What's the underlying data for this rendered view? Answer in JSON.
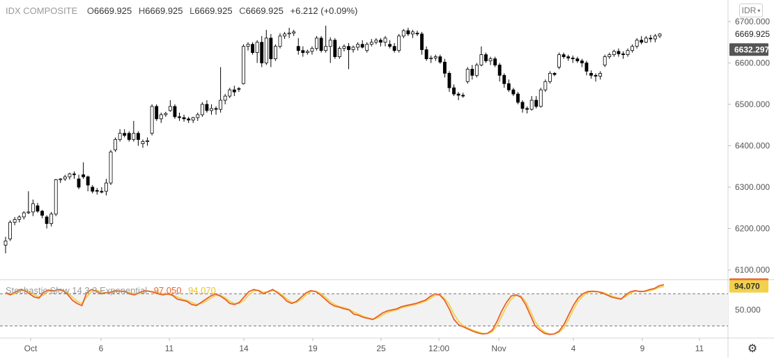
{
  "legend": {
    "symbol": "IDX COMPOSITE",
    "open_label": "O",
    "open": "6669.925",
    "high_label": "H",
    "high": "6669.925",
    "low_label": "L",
    "low": "6669.925",
    "close_label": "C",
    "close": "6669.925",
    "change": "+6.212 (+0.09%)"
  },
  "currency_button": "IDR",
  "oscillator": {
    "name": "Stochastic Slow 14 3 3 Exponential",
    "k_value": "97.050",
    "d_value": "94.070"
  },
  "colors": {
    "candle_outline": "#000000",
    "up_fill": "#ffffff",
    "down_fill": "#000000",
    "k_line": "#e8602c",
    "d_line": "#f2d14b",
    "k_badge": "#e8602c",
    "d_badge": "#f2d14b",
    "last_price_badge": "#555555",
    "osc_band": "#f2f2f2"
  },
  "chart_data": [
    {
      "type": "candlestick",
      "y_ticks": [
        "6700.000",
        "6600.000",
        "6500.000",
        "6400.000",
        "6300.000",
        "6200.000",
        "6100.000"
      ],
      "ylim": [
        6080,
        6705
      ],
      "x_ticks": [
        "Oct",
        "6",
        "11",
        "14",
        "19",
        "25",
        "12:00",
        "Nov",
        "4",
        "9",
        "11"
      ],
      "price_labels": [
        "6669.925",
        "6632.297"
      ],
      "ohlc": [
        [
          6160,
          6180,
          6140,
          6170
        ],
        [
          6175,
          6220,
          6170,
          6215
        ],
        [
          6215,
          6228,
          6208,
          6222
        ],
        [
          6222,
          6232,
          6215,
          6228
        ],
        [
          6228,
          6242,
          6222,
          6238
        ],
        [
          6238,
          6290,
          6235,
          6240
        ],
        [
          6240,
          6270,
          6230,
          6260
        ],
        [
          6255,
          6262,
          6238,
          6242
        ],
        [
          6242,
          6245,
          6225,
          6232
        ],
        [
          6228,
          6232,
          6200,
          6212
        ],
        [
          6212,
          6240,
          6205,
          6235
        ],
        [
          6235,
          6320,
          6230,
          6318
        ],
        [
          6318,
          6322,
          6310,
          6320
        ],
        [
          6320,
          6330,
          6315,
          6325
        ],
        [
          6325,
          6335,
          6318,
          6332
        ],
        [
          6332,
          6338,
          6320,
          6330
        ],
        [
          6320,
          6330,
          6295,
          6300
        ],
        [
          6330,
          6360,
          6320,
          6325
        ],
        [
          6325,
          6328,
          6290,
          6305
        ],
        [
          6300,
          6305,
          6285,
          6290
        ],
        [
          6292,
          6298,
          6282,
          6290
        ],
        [
          6290,
          6300,
          6285,
          6288
        ],
        [
          6290,
          6320,
          6280,
          6310
        ],
        [
          6310,
          6390,
          6305,
          6385
        ],
        [
          6390,
          6420,
          6385,
          6415
        ],
        [
          6415,
          6440,
          6410,
          6430
        ],
        [
          6430,
          6440,
          6420,
          6425
        ],
        [
          6430,
          6435,
          6410,
          6415
        ],
        [
          6415,
          6460,
          6410,
          6430
        ],
        [
          6430,
          6435,
          6400,
          6415
        ],
        [
          6405,
          6415,
          6395,
          6410
        ],
        [
          6410,
          6420,
          6400,
          6412
        ],
        [
          6430,
          6500,
          6425,
          6495
        ],
        [
          6495,
          6500,
          6460,
          6465
        ],
        [
          6465,
          6480,
          6455,
          6475
        ],
        [
          6475,
          6482,
          6470,
          6478
        ],
        [
          6485,
          6510,
          6482,
          6495
        ],
        [
          6495,
          6500,
          6465,
          6470
        ],
        [
          6470,
          6480,
          6460,
          6468
        ],
        [
          6468,
          6475,
          6458,
          6465
        ],
        [
          6465,
          6470,
          6455,
          6462
        ],
        [
          6462,
          6470,
          6455,
          6468
        ],
        [
          6468,
          6480,
          6460,
          6475
        ],
        [
          6475,
          6505,
          6470,
          6500
        ],
        [
          6500,
          6510,
          6480,
          6485
        ],
        [
          6485,
          6500,
          6475,
          6490
        ],
        [
          6490,
          6495,
          6475,
          6488
        ],
        [
          6488,
          6590,
          6480,
          6510
        ],
        [
          6510,
          6525,
          6500,
          6520
        ],
        [
          6520,
          6540,
          6515,
          6535
        ],
        [
          6535,
          6545,
          6520,
          6530
        ],
        [
          6538,
          6542,
          6530,
          6537
        ],
        [
          6550,
          6645,
          6548,
          6640
        ],
        [
          6640,
          6650,
          6630,
          6645
        ],
        [
          6645,
          6650,
          6620,
          6625
        ],
        [
          6625,
          6655,
          6600,
          6650
        ],
        [
          6650,
          6665,
          6590,
          6600
        ],
        [
          6600,
          6680,
          6595,
          6660
        ],
        [
          6660,
          6670,
          6590,
          6610
        ],
        [
          6610,
          6645,
          6605,
          6640
        ],
        [
          6640,
          6672,
          6635,
          6665
        ],
        [
          6665,
          6675,
          6658,
          6670
        ],
        [
          6670,
          6685,
          6660,
          6672
        ],
        [
          6672,
          6680,
          6665,
          6675
        ],
        [
          6640,
          6660,
          6620,
          6630
        ],
        [
          6630,
          6640,
          6615,
          6625
        ],
        [
          6625,
          6632,
          6620,
          6628
        ],
        [
          6628,
          6640,
          6620,
          6635
        ],
        [
          6635,
          6665,
          6630,
          6660
        ],
        [
          6660,
          6665,
          6625,
          6630
        ],
        [
          6630,
          6690,
          6625,
          6640
        ],
        [
          6640,
          6662,
          6600,
          6655
        ],
        [
          6655,
          6660,
          6610,
          6615
        ],
        [
          6615,
          6640,
          6610,
          6635
        ],
        [
          6635,
          6645,
          6628,
          6640
        ],
        [
          6640,
          6648,
          6585,
          6632
        ],
        [
          6632,
          6642,
          6625,
          6638
        ],
        [
          6638,
          6650,
          6630,
          6645
        ],
        [
          6645,
          6655,
          6635,
          6638
        ],
        [
          6630,
          6650,
          6625,
          6645
        ],
        [
          6645,
          6658,
          6640,
          6650
        ],
        [
          6650,
          6660,
          6645,
          6655
        ],
        [
          6655,
          6660,
          6640,
          6650
        ],
        [
          6650,
          6665,
          6640,
          6660
        ],
        [
          6645,
          6655,
          6635,
          6640
        ],
        [
          6640,
          6648,
          6625,
          6630
        ],
        [
          6630,
          6670,
          6625,
          6665
        ],
        [
          6665,
          6682,
          6660,
          6678
        ],
        [
          6678,
          6685,
          6665,
          6670
        ],
        [
          6670,
          6680,
          6660,
          6675
        ],
        [
          6672,
          6678,
          6665,
          6670
        ],
        [
          6670,
          6675,
          6620,
          6632
        ],
        [
          6632,
          6640,
          6605,
          6610
        ],
        [
          6610,
          6618,
          6600,
          6612
        ],
        [
          6612,
          6620,
          6605,
          6615
        ],
        [
          6615,
          6620,
          6598,
          6602
        ],
        [
          6602,
          6610,
          6565,
          6575
        ],
        [
          6575,
          6580,
          6530,
          6540
        ],
        [
          6540,
          6548,
          6520,
          6525
        ],
        [
          6525,
          6530,
          6510,
          6522
        ],
        [
          6522,
          6528,
          6516,
          6520
        ],
        [
          6555,
          6590,
          6550,
          6585
        ],
        [
          6585,
          6595,
          6560,
          6570
        ],
        [
          6570,
          6600,
          6565,
          6595
        ],
        [
          6595,
          6640,
          6592,
          6620
        ],
        [
          6620,
          6625,
          6600,
          6605
        ],
        [
          6605,
          6615,
          6595,
          6610
        ],
        [
          6610,
          6615,
          6590,
          6595
        ],
        [
          6595,
          6600,
          6555,
          6570
        ],
        [
          6570,
          6575,
          6540,
          6550
        ],
        [
          6550,
          6560,
          6530,
          6535
        ],
        [
          6535,
          6540,
          6520,
          6525
        ],
        [
          6525,
          6530,
          6500,
          6505
        ],
        [
          6505,
          6510,
          6480,
          6490
        ],
        [
          6490,
          6495,
          6478,
          6488
        ],
        [
          6488,
          6520,
          6485,
          6510
        ],
        [
          6510,
          6520,
          6490,
          6495
        ],
        [
          6495,
          6540,
          6492,
          6535
        ],
        [
          6535,
          6560,
          6530,
          6555
        ],
        [
          6555,
          6580,
          6550,
          6575
        ],
        [
          6575,
          6578,
          6568,
          6572
        ],
        [
          6590,
          6625,
          6585,
          6620
        ],
        [
          6620,
          6625,
          6610,
          6615
        ],
        [
          6615,
          6620,
          6605,
          6612
        ],
        [
          6612,
          6618,
          6600,
          6610
        ],
        [
          6610,
          6615,
          6600,
          6605
        ],
        [
          6605,
          6610,
          6590,
          6600
        ],
        [
          6600,
          6605,
          6570,
          6580
        ],
        [
          6575,
          6582,
          6562,
          6570
        ],
        [
          6570,
          6575,
          6555,
          6568
        ],
        [
          6568,
          6580,
          6560,
          6575
        ],
        [
          6595,
          6620,
          6590,
          6615
        ],
        [
          6615,
          6625,
          6610,
          6620
        ],
        [
          6620,
          6632,
          6615,
          6628
        ],
        [
          6628,
          6635,
          6615,
          6622
        ],
        [
          6622,
          6628,
          6610,
          6620
        ],
        [
          6620,
          6635,
          6615,
          6630
        ],
        [
          6630,
          6645,
          6625,
          6640
        ],
        [
          6640,
          6660,
          6635,
          6655
        ],
        [
          6655,
          6665,
          6645,
          6650
        ],
        [
          6650,
          6665,
          6648,
          6660
        ],
        [
          6660,
          6668,
          6650,
          6658
        ],
        [
          6658,
          6670,
          6650,
          6665
        ],
        [
          6665,
          6672,
          6660,
          6669.925
        ]
      ]
    },
    {
      "type": "line",
      "title": "Stochastic Slow 14 3 3 Exponential",
      "y_ticks": [
        "50.000"
      ],
      "reference_lines": [
        80,
        20
      ],
      "ylim": [
        0,
        100
      ],
      "series": [
        {
          "name": "%K",
          "values": [
            82,
            78,
            83,
            88,
            86,
            80,
            74,
            72,
            83,
            87,
            85,
            88,
            86,
            79,
            68,
            62,
            58,
            82,
            88,
            85,
            80,
            82,
            83,
            86,
            85,
            84,
            80,
            78,
            82,
            86,
            85,
            83,
            80,
            78,
            80,
            77,
            70,
            68,
            66,
            60,
            58,
            64,
            70,
            76,
            80,
            76,
            70,
            62,
            60,
            64,
            74,
            84,
            88,
            86,
            80,
            84,
            88,
            82,
            75,
            66,
            62,
            66,
            74,
            82,
            86,
            84,
            78,
            70,
            62,
            57,
            55,
            52,
            50,
            42,
            40,
            36,
            34,
            32,
            38,
            44,
            48,
            50,
            52,
            56,
            58,
            60,
            62,
            65,
            68,
            75,
            80,
            78,
            68,
            52,
            32,
            22,
            18,
            14,
            10,
            7,
            5,
            6,
            12,
            28,
            48,
            64,
            76,
            78,
            74,
            60,
            40,
            20,
            12,
            6,
            4,
            5,
            10,
            22,
            40,
            58,
            72,
            80,
            84,
            85,
            84,
            82,
            78,
            74,
            72,
            70,
            78,
            84,
            86,
            84,
            85,
            88,
            90,
            95,
            97
          ]
        },
        {
          "name": "%D",
          "values": [
            80,
            79,
            80,
            85,
            87,
            84,
            78,
            74,
            78,
            84,
            86,
            87,
            87,
            82,
            74,
            66,
            62,
            74,
            84,
            87,
            84,
            82,
            82,
            84,
            85,
            85,
            82,
            80,
            80,
            84,
            85,
            84,
            82,
            80,
            79,
            78,
            74,
            70,
            68,
            64,
            60,
            62,
            66,
            72,
            77,
            77,
            73,
            66,
            62,
            62,
            68,
            78,
            85,
            87,
            83,
            83,
            86,
            84,
            78,
            70,
            64,
            64,
            70,
            78,
            84,
            85,
            81,
            74,
            66,
            60,
            56,
            54,
            51,
            46,
            42,
            38,
            35,
            33,
            35,
            40,
            45,
            48,
            50,
            54,
            56,
            58,
            60,
            63,
            66,
            71,
            77,
            78,
            72,
            60,
            42,
            28,
            20,
            16,
            12,
            9,
            6,
            6,
            9,
            20,
            38,
            56,
            70,
            77,
            76,
            66,
            48,
            28,
            16,
            9,
            5,
            5,
            8,
            16,
            32,
            50,
            66,
            76,
            82,
            84,
            84,
            83,
            80,
            76,
            73,
            71,
            75,
            81,
            85,
            85,
            84,
            86,
            88,
            92,
            94.07
          ]
        }
      ]
    }
  ]
}
